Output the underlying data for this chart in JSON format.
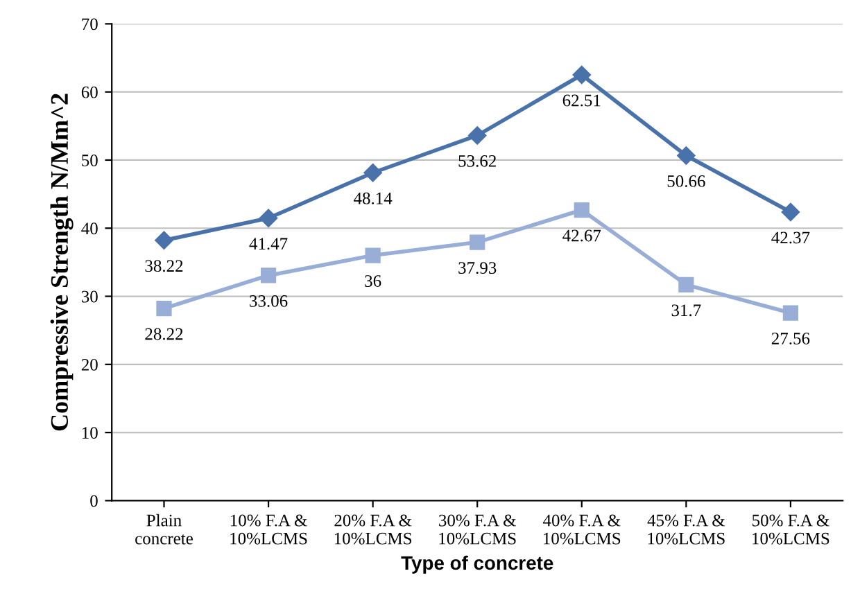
{
  "chart_data": {
    "type": "line",
    "xlabel": "Type of concrete",
    "ylabel": "Compressive Strength N/Mm^2",
    "categories": [
      "Plain\nconcrete",
      "10% F.A &\n10%LCMS",
      "20% F.A &\n10%LCMS",
      "30% F.A &\n10%LCMS",
      "40% F.A &\n10%LCMS",
      "45% F.A &\n10%LCMS",
      "50% F.A &\n10%LCMS"
    ],
    "series": [
      {
        "color": "#4a72aa",
        "marker": "diamond",
        "values": [
          38.22,
          41.47,
          48.14,
          53.62,
          62.51,
          50.66,
          42.37
        ]
      },
      {
        "color": "#98aed6",
        "marker": "square",
        "values": [
          28.22,
          33.06,
          36,
          37.93,
          42.67,
          31.7,
          27.56
        ]
      }
    ],
    "ylim": [
      0,
      70
    ],
    "yticks": [
      0,
      10,
      20,
      30,
      40,
      50,
      60,
      70
    ],
    "grid": "y",
    "data_labels": true
  }
}
